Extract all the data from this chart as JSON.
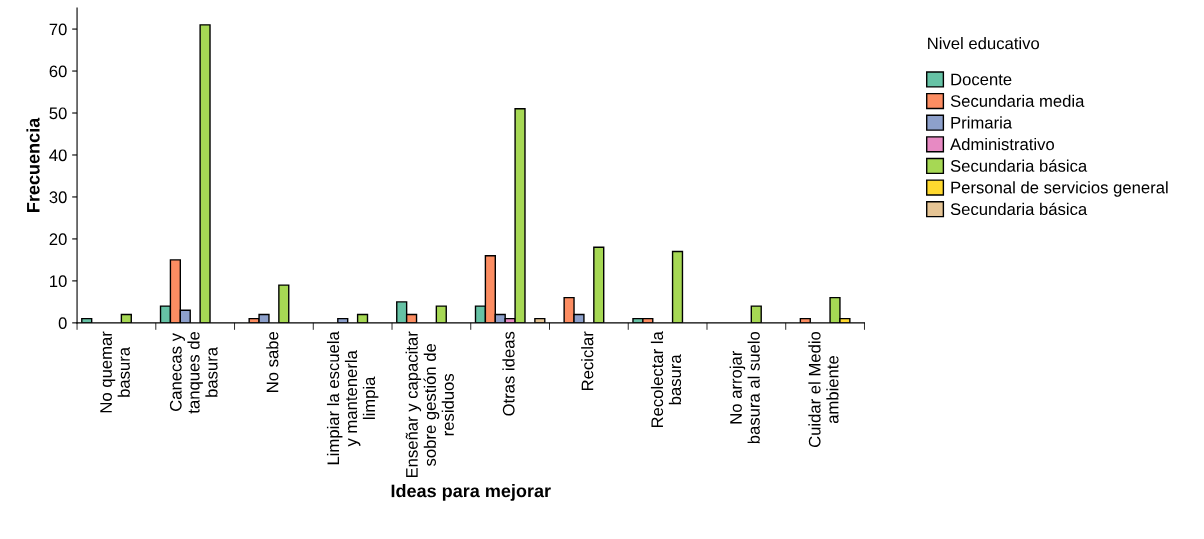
{
  "chart_data": {
    "type": "bar",
    "xlabel": "Ideas para mejorar",
    "ylabel": "Frecuencia",
    "legend_title": "Nivel educativo",
    "categories": [
      "No quemar\nbasura",
      "Canecas y\ntanques de\nbasura",
      "No sabe",
      "Limpiar la escuela\ny mantenerla\nlimpia",
      "Enseñar y capacitar\nsobre gestión de\nresiduos",
      "Otras ideas",
      "Reciclar",
      "Recolectar la\nbasura",
      "No arrojar\nbasura al suelo",
      "Cuidar el Medio\nambiente"
    ],
    "series": [
      {
        "name": "Docente",
        "color": "#66c2a5",
        "values": [
          1,
          4,
          0,
          0,
          5,
          4,
          0,
          1,
          0,
          0
        ]
      },
      {
        "name": "Secundaria media",
        "color": "#fc8d62",
        "values": [
          0,
          15,
          1,
          0,
          2,
          16,
          6,
          1,
          0,
          1
        ]
      },
      {
        "name": "Primaria",
        "color": "#8da0cb",
        "values": [
          0,
          3,
          2,
          1,
          0,
          2,
          2,
          0,
          0,
          0
        ]
      },
      {
        "name": "Administrativo",
        "color": "#e78ac3",
        "values": [
          0,
          0,
          0,
          0,
          0,
          1,
          0,
          0,
          0,
          0
        ]
      },
      {
        "name": "Secundaria básica",
        "color": "#a6d854",
        "values": [
          2,
          71,
          9,
          2,
          4,
          51,
          18,
          17,
          4,
          6
        ]
      },
      {
        "name": "Personal de servicios general",
        "color": "#ffd92f",
        "values": [
          0,
          0,
          0,
          0,
          0,
          0,
          0,
          0,
          0,
          1
        ]
      },
      {
        "name": "Secundaria básica",
        "color": "#e5c494",
        "values": [
          0,
          0,
          0,
          0,
          0,
          1,
          0,
          0,
          0,
          0
        ]
      }
    ],
    "ylim": [
      0,
      75
    ],
    "yticks": [
      0,
      10,
      20,
      30,
      40,
      50,
      60,
      70
    ],
    "legend": "right"
  }
}
